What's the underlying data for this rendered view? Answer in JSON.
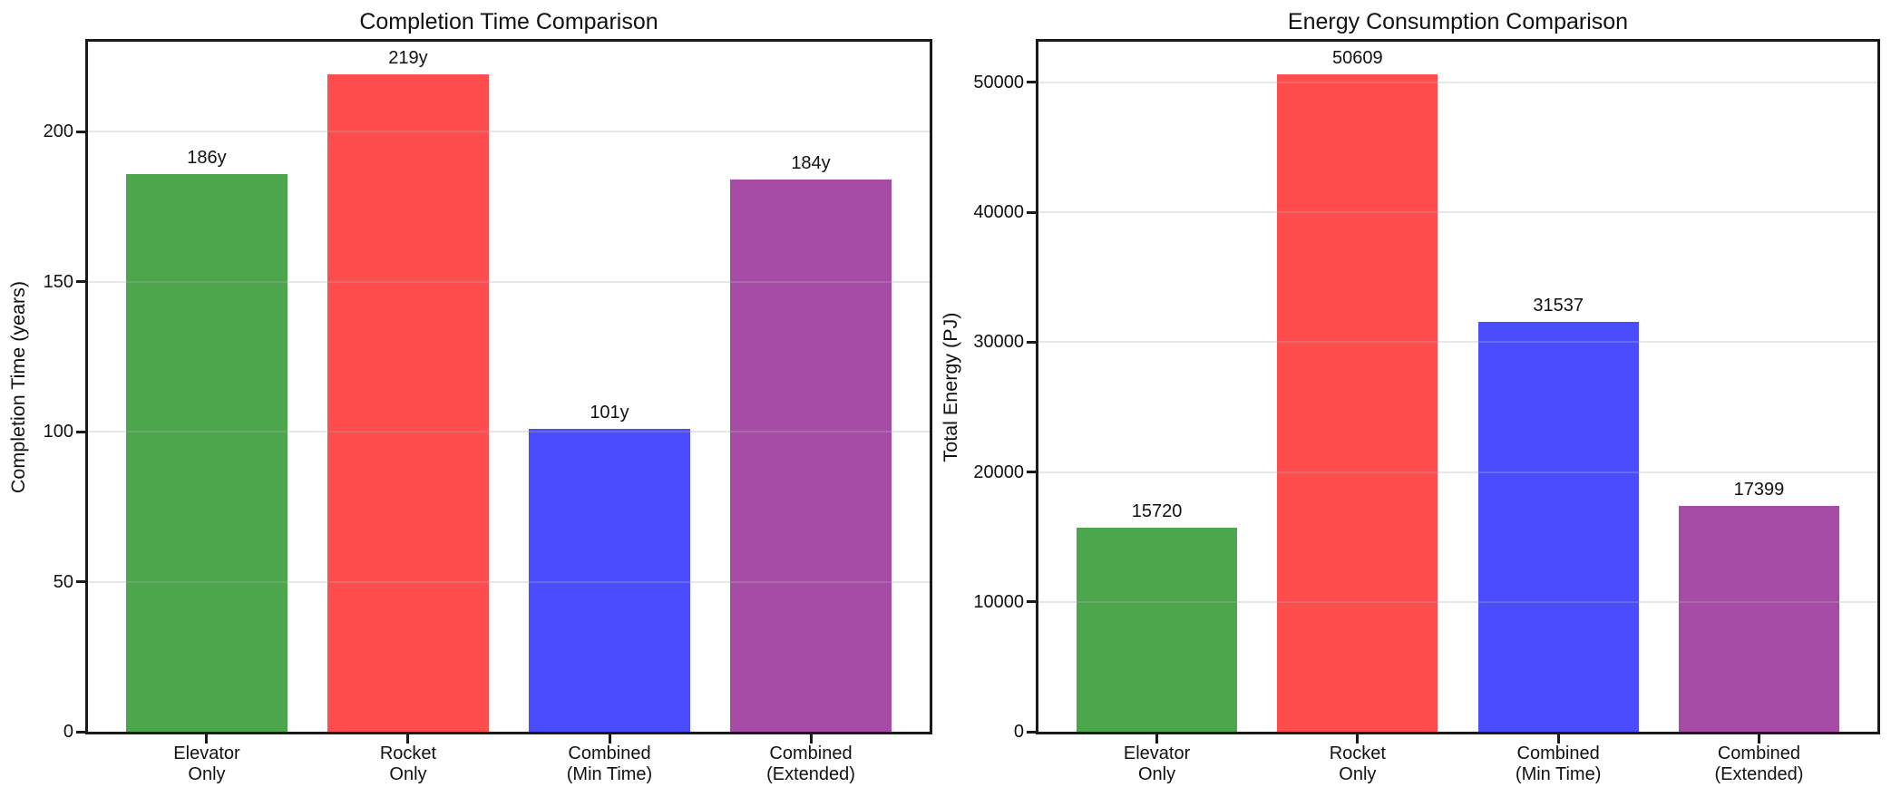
{
  "figure": {
    "background": "#ffffff",
    "spine_color": "#1a1a1a",
    "grid_color": "#b0b0b0",
    "grid_alpha": 0.3
  },
  "chart_data": [
    {
      "type": "bar",
      "title": "Completion Time Comparison",
      "xlabel": "",
      "ylabel": "Completion Time (years)",
      "categories": [
        "Elevator\nOnly",
        "Rocket\nOnly",
        "Combined\n(Min Time)",
        "Combined\n(Extended)"
      ],
      "values": [
        186,
        219,
        101,
        184
      ],
      "bar_labels": [
        "186y",
        "219y",
        "101y",
        "184y"
      ],
      "bar_colors": [
        "#4CA64C",
        "#FF4C4C",
        "#4C4CFF",
        "#A64CA6"
      ],
      "yticks": [
        0,
        50,
        100,
        150,
        200
      ],
      "ytick_labels": [
        "0",
        "50",
        "100",
        "150",
        "200"
      ],
      "ylim": [
        0,
        230
      ],
      "grid": true,
      "legend": false
    },
    {
      "type": "bar",
      "title": "Energy Consumption Comparison",
      "xlabel": "",
      "ylabel": "Total Energy (PJ)",
      "categories": [
        "Elevator\nOnly",
        "Rocket\nOnly",
        "Combined\n(Min Time)",
        "Combined\n(Extended)"
      ],
      "values": [
        15720,
        50609,
        31537,
        17399
      ],
      "bar_labels": [
        "15720",
        "50609",
        "31537",
        "17399"
      ],
      "bar_colors": [
        "#4CA64C",
        "#FF4C4C",
        "#4C4CFF",
        "#A64CA6"
      ],
      "yticks": [
        0,
        10000,
        20000,
        30000,
        40000,
        50000
      ],
      "ytick_labels": [
        "0",
        "10000",
        "20000",
        "30000",
        "40000",
        "50000"
      ],
      "ylim": [
        0,
        53139
      ],
      "grid": true,
      "legend": false
    }
  ]
}
